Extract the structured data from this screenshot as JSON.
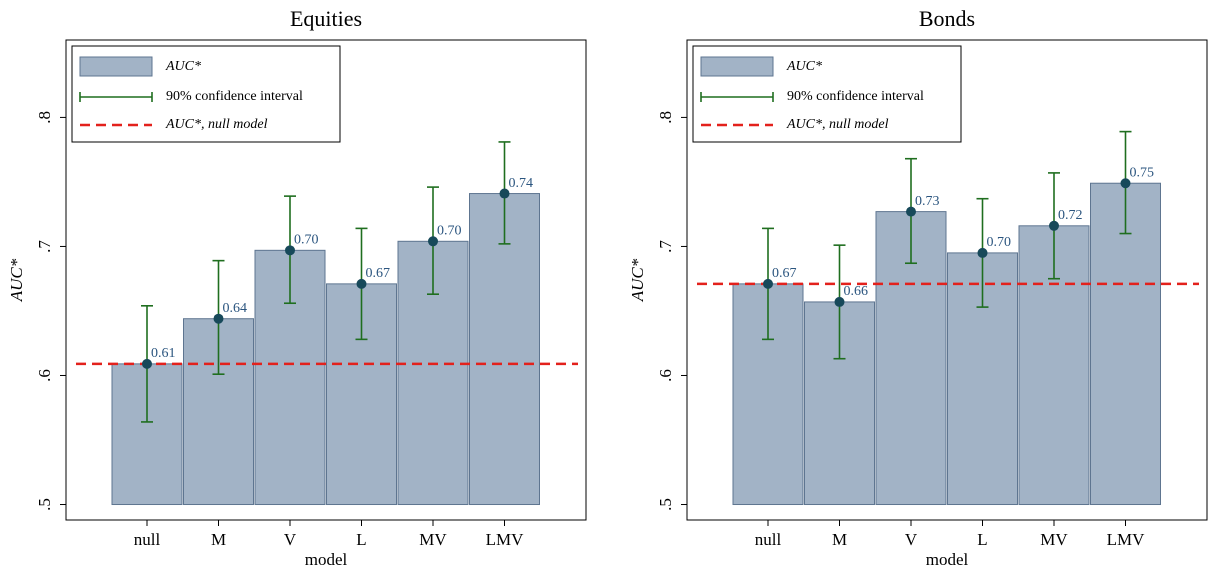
{
  "chart_data": [
    {
      "type": "bar",
      "title": "Equities",
      "x_label": "model",
      "y_label": "AUC*",
      "categories": [
        "null",
        "M",
        "V",
        "L",
        "MV",
        "LMV"
      ],
      "series": [
        {
          "name": "AUC*",
          "color": "#a2b3c6",
          "values": [
            0.609,
            0.644,
            0.697,
            0.671,
            0.704,
            0.741
          ],
          "value_labels": [
            "0.61",
            "0.64",
            "0.70",
            "0.67",
            "0.70",
            "0.74"
          ]
        }
      ],
      "ci": {
        "name": "90% confidence interval",
        "color": "#1f6e1f",
        "low": [
          0.564,
          0.601,
          0.656,
          0.628,
          0.663,
          0.702
        ],
        "high": [
          0.654,
          0.689,
          0.739,
          0.714,
          0.746,
          0.781
        ]
      },
      "reference": {
        "name": "AUC*, null model",
        "color": "#e3211c",
        "value": 0.609
      },
      "ylim": [
        0.488,
        0.86
      ],
      "yticks": [
        {
          "value": 0.5,
          "label": ".5"
        },
        {
          "value": 0.6,
          "label": ".6"
        },
        {
          "value": 0.7,
          "label": ".7"
        },
        {
          "value": 0.8,
          "label": ".8"
        }
      ]
    },
    {
      "type": "bar",
      "title": "Bonds",
      "x_label": "model",
      "y_label": "AUC*",
      "categories": [
        "null",
        "M",
        "V",
        "L",
        "MV",
        "LMV"
      ],
      "series": [
        {
          "name": "AUC*",
          "color": "#a2b3c6",
          "values": [
            0.671,
            0.657,
            0.727,
            0.695,
            0.716,
            0.749
          ],
          "value_labels": [
            "0.67",
            "0.66",
            "0.73",
            "0.70",
            "0.72",
            "0.75"
          ]
        }
      ],
      "ci": {
        "name": "90% confidence interval",
        "color": "#1f6e1f",
        "low": [
          0.628,
          0.613,
          0.687,
          0.653,
          0.675,
          0.71
        ],
        "high": [
          0.714,
          0.701,
          0.768,
          0.737,
          0.757,
          0.789
        ]
      },
      "reference": {
        "name": "AUC*, null model",
        "color": "#e3211c",
        "value": 0.671
      },
      "ylim": [
        0.488,
        0.86
      ],
      "yticks": [
        {
          "value": 0.5,
          "label": ".5"
        },
        {
          "value": 0.6,
          "label": ".6"
        },
        {
          "value": 0.7,
          "label": ".7"
        },
        {
          "value": 0.8,
          "label": ".8"
        }
      ]
    }
  ]
}
